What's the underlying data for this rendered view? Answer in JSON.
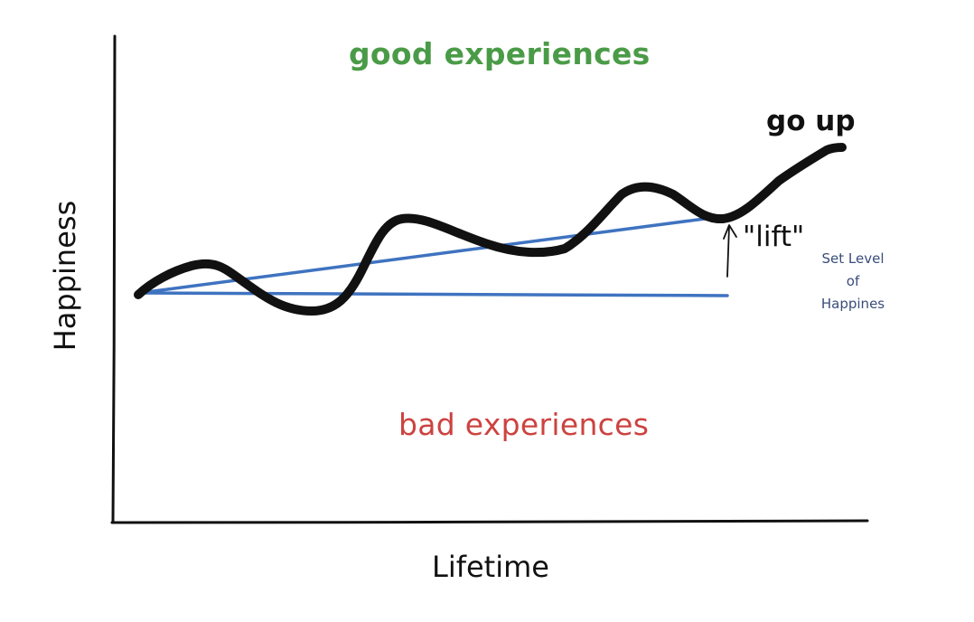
{
  "colors": {
    "good": "#4a9b47",
    "bad": "#cc4340",
    "reference_line": "#3f73c0",
    "happiness_curve": "#111111",
    "setlevel_text": "#3a4d7a",
    "axis": "#111111"
  },
  "labels": {
    "y_axis": "Happiness",
    "x_axis": "Lifetime",
    "good": "good experiences",
    "bad": "bad experiences",
    "go_up": "go up",
    "lift": "\"lift\"",
    "set_level": [
      "Set Level",
      "of",
      "Happines"
    ]
  }
}
